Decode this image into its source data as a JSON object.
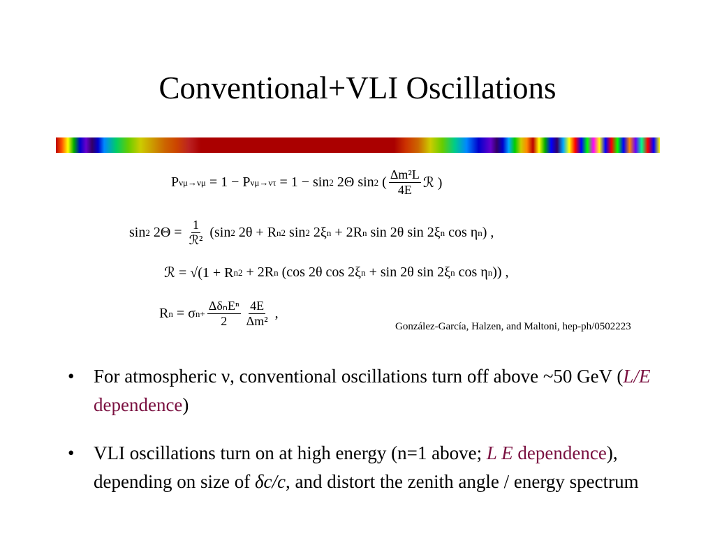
{
  "title": "Conventional+VLI Oscillations",
  "equations": [
    [
      "P",
      {
        "sub": "νμ→νμ"
      },
      " = 1 − P",
      {
        "sub": "νμ→ντ"
      },
      " = 1 − sin",
      {
        "sup": "2"
      },
      " 2Θ sin",
      {
        "sup": "2"
      },
      " (",
      {
        "num": "Δm²L",
        "den": "4E"
      },
      "ℛ )"
    ],
    [
      "sin",
      {
        "sup": "2"
      },
      " 2Θ = ",
      {
        "num": "1",
        "den": "ℛ²"
      },
      " (sin",
      {
        "sup": "2"
      },
      " 2θ + R",
      {
        "sub": "n"
      },
      {
        "sup": "2"
      },
      " sin",
      {
        "sup": "2"
      },
      " 2ξ",
      {
        "sub": "n"
      },
      " + 2R",
      {
        "sub": "n"
      },
      " sin 2θ sin 2ξ",
      {
        "sub": "n"
      },
      " cos η",
      {
        "sub": "n"
      },
      ") ,"
    ],
    [
      "ℛ = √(1 + R",
      {
        "sub": "n"
      },
      {
        "sup": "2"
      },
      " + 2R",
      {
        "sub": "n"
      },
      " (cos 2θ cos 2ξ",
      {
        "sub": "n"
      },
      " + sin 2θ sin 2ξ",
      {
        "sub": "n"
      },
      " cos η",
      {
        "sub": "n"
      },
      ")) ,"
    ],
    [
      "R",
      {
        "sub": "n"
      },
      " = σ",
      {
        "sub": "n"
      },
      {
        "sup": "+"
      },
      {
        "num": "ΔδₙEⁿ",
        "den": "2"
      },
      {
        "num": "4E",
        "den": "Δm²"
      },
      " ,"
    ]
  ],
  "citation": "González-García, Halzen, and Maltoni, hep-ph/0502223",
  "bullets": [
    {
      "marker": "•",
      "segments": [
        {
          "text": "For atmospheric ν, conventional oscillations turn off above ~50 GeV (",
          "style": "plain"
        },
        {
          "text": "L/E",
          "style": "italic-accent"
        },
        {
          "text": " dependence",
          "style": "accent"
        },
        {
          "text": ")",
          "style": "plain"
        }
      ]
    },
    {
      "marker": "•",
      "segments": [
        {
          "text": "VLI oscillations turn on at high energy (n=1 above; ",
          "style": "plain"
        },
        {
          "text": "L E",
          "style": "italic-accent"
        },
        {
          "text": " dependence",
          "style": "accent"
        },
        {
          "text": "), depending on size of ",
          "style": "plain"
        },
        {
          "text": "δc/c",
          "style": "italic"
        },
        {
          "text": ", and distort the zenith angle / energy spectrum",
          "style": "plain"
        }
      ]
    }
  ]
}
